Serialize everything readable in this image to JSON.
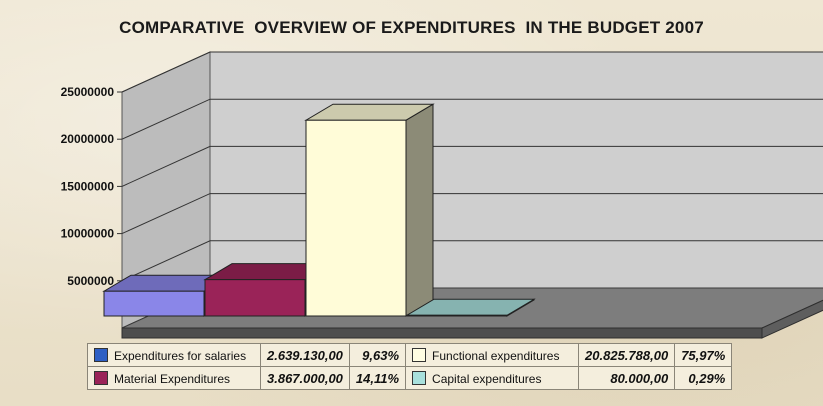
{
  "chart_data": {
    "type": "bar",
    "title": "COMPARATIVE  OVERVIEW OF EXPENDITURES  IN THE BUDGET 2007",
    "ylim": [
      0,
      25000000
    ],
    "yticks": [
      "5000000",
      "10000000",
      "15000000",
      "20000000",
      "25000000"
    ],
    "grid": true,
    "legend_position": "bottom",
    "series": [
      {
        "name": "Expenditures for salaries",
        "value": 2639130,
        "value_label": "2.639.130,00",
        "percent": "9,63%",
        "color": "#8a86e8"
      },
      {
        "name": "Material Expenditures",
        "value": 3867000,
        "value_label": "3.867.000,00",
        "percent": "14,11%",
        "color": "#9a2358"
      },
      {
        "name": "Functional expenditures",
        "value": 20825788,
        "value_label": "20.825.788,00",
        "percent": "75,97%",
        "color": "#fffcd8"
      },
      {
        "name": "Capital expenditures",
        "value": 80000,
        "value_label": "80.000,00",
        "percent": "0,29%",
        "color": "#a8e0dc"
      }
    ]
  }
}
